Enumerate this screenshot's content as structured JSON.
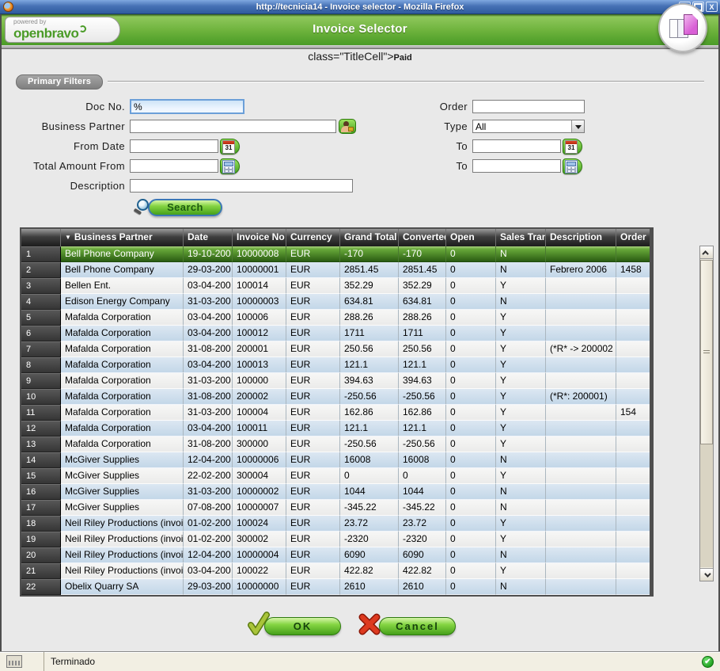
{
  "titlebar": {
    "title": "http://tecnicia14 - Invoice selector - Mozilla Firefox"
  },
  "header": {
    "powered_by": "powered by",
    "brand": "openbravo",
    "title": "Invoice Selector"
  },
  "subtitle": {
    "code": "class=\"TitleCell\">",
    "small": "Paid"
  },
  "filters": {
    "legend": "Primary Filters",
    "search_label": "Search",
    "left": [
      {
        "label": "Doc No.",
        "value": "%"
      },
      {
        "label": "Business Partner",
        "value": ""
      },
      {
        "label": "From Date",
        "value": ""
      },
      {
        "label": "Total Amount From",
        "value": ""
      },
      {
        "label": "Description",
        "value": ""
      }
    ],
    "right": [
      {
        "label": "Order",
        "value": ""
      },
      {
        "label": "Type",
        "value": "All"
      },
      {
        "label": "To",
        "value": ""
      },
      {
        "label": "To",
        "value": ""
      }
    ]
  },
  "table": {
    "columns": [
      "",
      "Business Partner",
      "Date",
      "Invoice No",
      "Currency",
      "Grand Total",
      "Converted",
      "Open",
      "Sales Tran",
      "Description",
      "Order"
    ],
    "selected_row": 1,
    "rows": [
      [
        "1",
        "Bell Phone Company",
        "19-10-200",
        "10000008",
        "EUR",
        "-170",
        "-170",
        "0",
        "N",
        "",
        ""
      ],
      [
        "2",
        "Bell Phone Company",
        "29-03-200",
        "10000001",
        "EUR",
        "2851.45",
        "2851.45",
        "0",
        "N",
        "Febrero 2006",
        "1458"
      ],
      [
        "3",
        "Bellen Ent.",
        "03-04-200",
        "100014",
        "EUR",
        "352.29",
        "352.29",
        "0",
        "Y",
        "",
        ""
      ],
      [
        "4",
        "Edison Energy Company",
        "31-03-200",
        "10000003",
        "EUR",
        "634.81",
        "634.81",
        "0",
        "N",
        "",
        ""
      ],
      [
        "5",
        "Mafalda Corporation",
        "03-04-200",
        "100006",
        "EUR",
        "288.26",
        "288.26",
        "0",
        "Y",
        "",
        ""
      ],
      [
        "6",
        "Mafalda Corporation",
        "03-04-200",
        "100012",
        "EUR",
        "1711",
        "1711",
        "0",
        "Y",
        "",
        ""
      ],
      [
        "7",
        "Mafalda Corporation",
        "31-08-200",
        "200001",
        "EUR",
        "250.56",
        "250.56",
        "0",
        "Y",
        "(*R* -> 200002",
        ""
      ],
      [
        "8",
        "Mafalda Corporation",
        "03-04-200",
        "100013",
        "EUR",
        "121.1",
        "121.1",
        "0",
        "Y",
        "",
        ""
      ],
      [
        "9",
        "Mafalda Corporation",
        "31-03-200",
        "100000",
        "EUR",
        "394.63",
        "394.63",
        "0",
        "Y",
        "",
        ""
      ],
      [
        "10",
        "Mafalda Corporation",
        "31-08-200",
        "200002",
        "EUR",
        "-250.56",
        "-250.56",
        "0",
        "Y",
        "(*R*: 200001)",
        ""
      ],
      [
        "11",
        "Mafalda Corporation",
        "31-03-200",
        "100004",
        "EUR",
        "162.86",
        "162.86",
        "0",
        "Y",
        "",
        "154"
      ],
      [
        "12",
        "Mafalda Corporation",
        "03-04-200",
        "100011",
        "EUR",
        "121.1",
        "121.1",
        "0",
        "Y",
        "",
        ""
      ],
      [
        "13",
        "Mafalda Corporation",
        "31-08-200",
        "300000",
        "EUR",
        "-250.56",
        "-250.56",
        "0",
        "Y",
        "",
        ""
      ],
      [
        "14",
        "McGiver Supplies",
        "12-04-200",
        "10000006",
        "EUR",
        "16008",
        "16008",
        "0",
        "N",
        "",
        ""
      ],
      [
        "15",
        "McGiver Supplies",
        "22-02-200",
        "300004",
        "EUR",
        "0",
        "0",
        "0",
        "Y",
        "",
        ""
      ],
      [
        "16",
        "McGiver Supplies",
        "31-03-200",
        "10000002",
        "EUR",
        "1044",
        "1044",
        "0",
        "N",
        "",
        ""
      ],
      [
        "17",
        "McGiver Supplies",
        "07-08-200",
        "10000007",
        "EUR",
        "-345.22",
        "-345.22",
        "0",
        "N",
        "",
        ""
      ],
      [
        "18",
        "Neil Riley Productions (invoi",
        "01-02-200",
        "100024",
        "EUR",
        "23.72",
        "23.72",
        "0",
        "Y",
        "",
        ""
      ],
      [
        "19",
        "Neil Riley Productions (invoi",
        "01-02-200",
        "300002",
        "EUR",
        "-2320",
        "-2320",
        "0",
        "Y",
        "",
        ""
      ],
      [
        "20",
        "Neil Riley Productions (invoi",
        "12-04-200",
        "10000004",
        "EUR",
        "6090",
        "6090",
        "0",
        "N",
        "",
        ""
      ],
      [
        "21",
        "Neil Riley Productions (invoi",
        "03-04-200",
        "100022",
        "EUR",
        "422.82",
        "422.82",
        "0",
        "Y",
        "",
        ""
      ],
      [
        "22",
        "Obelix Quarry SA",
        "29-03-200",
        "10000000",
        "EUR",
        "2610",
        "2610",
        "0",
        "N",
        "",
        ""
      ]
    ]
  },
  "buttons": {
    "ok": "OK",
    "cancel": "Cancel"
  },
  "statusbar": {
    "text": "Terminado",
    "ok_glyph": "✔"
  },
  "icons": {
    "sort_desc": "▼"
  },
  "colors": {
    "titlebar_blue": "#4671b5",
    "header_green": "#55a52e",
    "selected_row_top": "#68a93a",
    "selected_row_bottom": "#2a5c12",
    "row_blue": "#cddcec",
    "row_light": "#f2f2f1",
    "table_header_dark": "#2f2f2f",
    "button_green": "#46a01a",
    "brand_green": "#4a9b27"
  }
}
